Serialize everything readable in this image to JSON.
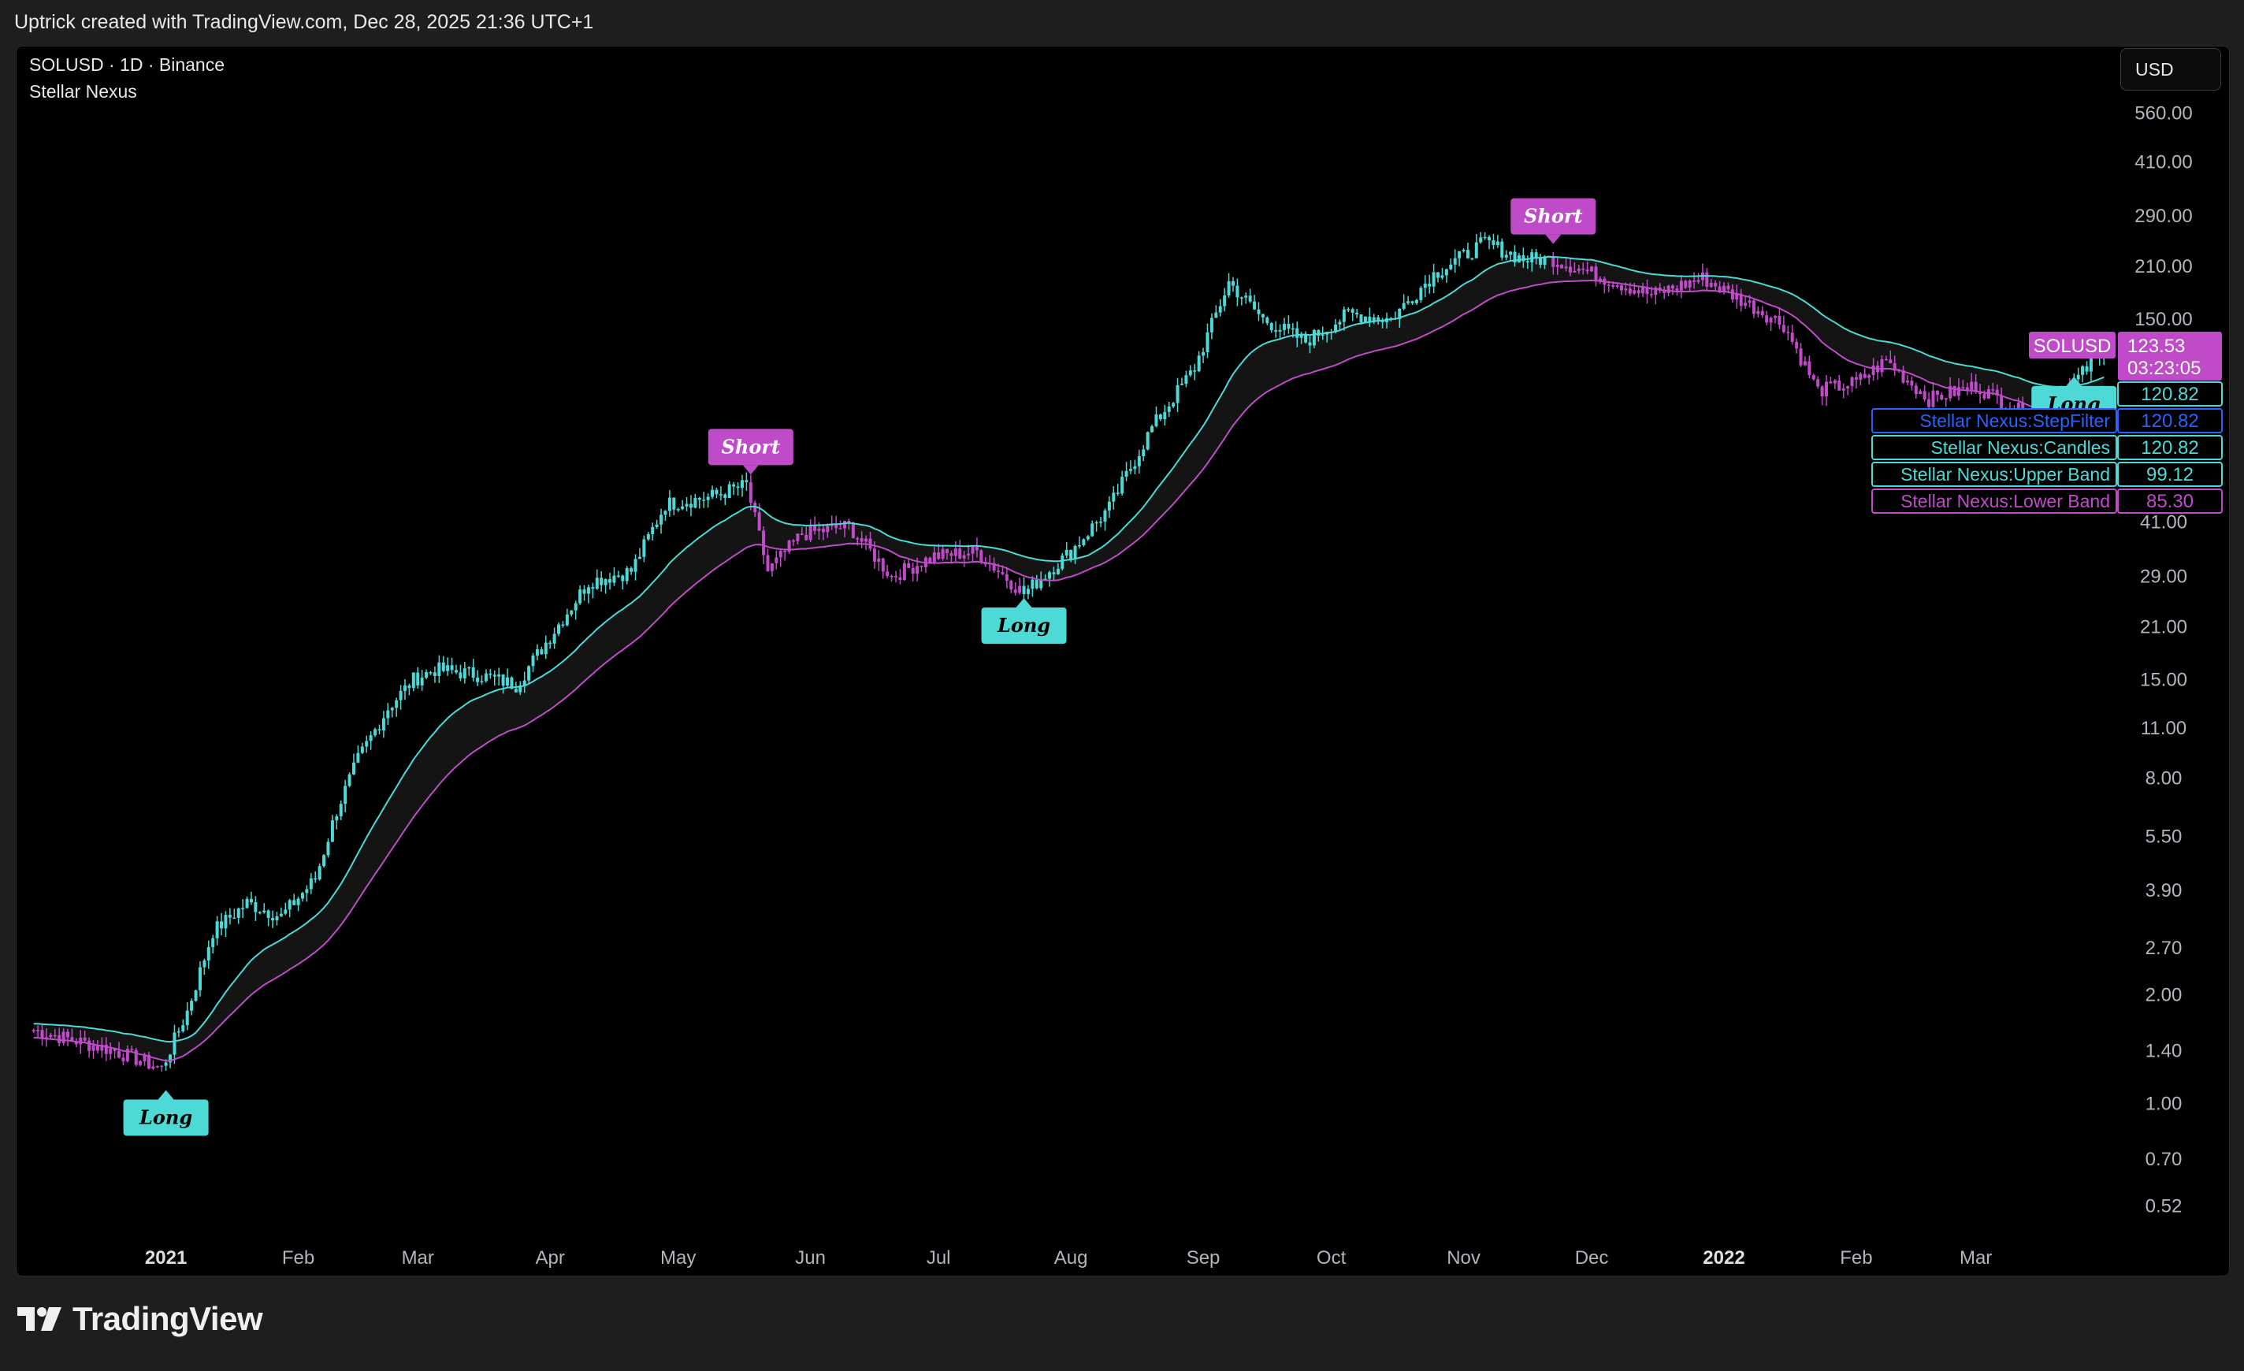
{
  "caption": "Uptrick created with TradingView.com, Dec 28, 2025 21:36 UTC+1",
  "header": {
    "symbol": "SOLUSD · 1D · Binance",
    "indicator": "Stellar Nexus"
  },
  "currency_button": "USD",
  "logo_text": "TradingView",
  "colors": {
    "bull": "#4dd9d6",
    "bear": "#c04bc8",
    "background": "#000000",
    "stepfilter": "#2962ff"
  },
  "chart_data": {
    "type": "candlestick",
    "scale": "log",
    "y_range": [
      0.45,
      700
    ],
    "y_ticks": [
      "560.00",
      "410.00",
      "290.00",
      "210.00",
      "150.00",
      "41.00",
      "29.00",
      "21.00",
      "15.00",
      "11.00",
      "8.00",
      "5.50",
      "3.90",
      "2.70",
      "2.00",
      "1.40",
      "1.00",
      "0.70",
      "0.52"
    ],
    "x_ticks": [
      {
        "label": "2021",
        "bold": true
      },
      {
        "label": "Feb",
        "bold": false
      },
      {
        "label": "Mar",
        "bold": false
      },
      {
        "label": "Apr",
        "bold": false
      },
      {
        "label": "May",
        "bold": false
      },
      {
        "label": "Jun",
        "bold": false
      },
      {
        "label": "Jul",
        "bold": false
      },
      {
        "label": "Aug",
        "bold": false
      },
      {
        "label": "Sep",
        "bold": false
      },
      {
        "label": "Oct",
        "bold": false
      },
      {
        "label": "Nov",
        "bold": false
      },
      {
        "label": "Dec",
        "bold": false
      },
      {
        "label": "2022",
        "bold": true
      },
      {
        "label": "Feb",
        "bold": false
      },
      {
        "label": "Mar",
        "bold": false
      }
    ],
    "series": [
      {
        "name": "Stellar Nexus:StepFilter",
        "last": "120.82"
      },
      {
        "name": "Stellar Nexus:Candles",
        "last": "120.82"
      },
      {
        "name": "Stellar Nexus:Upper Band",
        "last": "99.12"
      },
      {
        "name": "Stellar Nexus:Lower Band",
        "last": "85.30"
      }
    ],
    "price_label": {
      "symbol": "SOLUSD",
      "value": "123.53",
      "countdown": "03:23:05"
    },
    "filter_value": "120.82",
    "signals": [
      {
        "type": "Long",
        "date": "2021-01-01",
        "price": 1.1
      },
      {
        "type": "Short",
        "date": "2021-05-18",
        "price": 55.0
      },
      {
        "type": "Long",
        "date": "2021-07-21",
        "price": 25.5
      },
      {
        "type": "Short",
        "date": "2021-11-22",
        "price": 240.0
      },
      {
        "type": "Long",
        "date": "2022-03-24",
        "price": 105.0
      }
    ],
    "anchors": [
      {
        "date": "2020-12-01",
        "price": 1.6
      },
      {
        "date": "2020-12-20",
        "price": 1.4
      },
      {
        "date": "2020-12-31",
        "price": 1.25
      },
      {
        "date": "2021-01-06",
        "price": 1.8
      },
      {
        "date": "2021-01-12",
        "price": 3.0
      },
      {
        "date": "2021-01-20",
        "price": 3.6
      },
      {
        "date": "2021-01-28",
        "price": 3.3
      },
      {
        "date": "2021-02-05",
        "price": 4.2
      },
      {
        "date": "2021-02-10",
        "price": 6.5
      },
      {
        "date": "2021-02-15",
        "price": 9.0
      },
      {
        "date": "2021-02-22",
        "price": 12.5
      },
      {
        "date": "2021-02-28",
        "price": 15.0
      },
      {
        "date": "2021-03-05",
        "price": 16.0
      },
      {
        "date": "2021-03-15",
        "price": 15.5
      },
      {
        "date": "2021-03-24",
        "price": 14.5
      },
      {
        "date": "2021-03-31",
        "price": 19.0
      },
      {
        "date": "2021-04-10",
        "price": 28.0
      },
      {
        "date": "2021-04-20",
        "price": 30.0
      },
      {
        "date": "2021-04-28",
        "price": 46.0
      },
      {
        "date": "2021-05-08",
        "price": 48.0
      },
      {
        "date": "2021-05-17",
        "price": 52.0
      },
      {
        "date": "2021-05-22",
        "price": 30.0
      },
      {
        "date": "2021-05-30",
        "price": 38.0
      },
      {
        "date": "2021-06-10",
        "price": 40.0
      },
      {
        "date": "2021-06-20",
        "price": 29.0
      },
      {
        "date": "2021-06-30",
        "price": 33.0
      },
      {
        "date": "2021-07-10",
        "price": 34.0
      },
      {
        "date": "2021-07-21",
        "price": 26.0
      },
      {
        "date": "2021-08-01",
        "price": 34.0
      },
      {
        "date": "2021-08-10",
        "price": 45.0
      },
      {
        "date": "2021-08-20",
        "price": 75.0
      },
      {
        "date": "2021-08-30",
        "price": 110.0
      },
      {
        "date": "2021-09-07",
        "price": 190.0
      },
      {
        "date": "2021-09-15",
        "price": 150.0
      },
      {
        "date": "2021-09-25",
        "price": 130.0
      },
      {
        "date": "2021-10-05",
        "price": 155.0
      },
      {
        "date": "2021-10-15",
        "price": 150.0
      },
      {
        "date": "2021-10-25",
        "price": 200.0
      },
      {
        "date": "2021-11-06",
        "price": 245.0
      },
      {
        "date": "2021-11-15",
        "price": 220.0
      },
      {
        "date": "2021-11-22",
        "price": 220.0
      },
      {
        "date": "2021-12-04",
        "price": 195.0
      },
      {
        "date": "2021-12-15",
        "price": 175.0
      },
      {
        "date": "2021-12-27",
        "price": 195.0
      },
      {
        "date": "2022-01-05",
        "price": 170.0
      },
      {
        "date": "2022-01-15",
        "price": 145.0
      },
      {
        "date": "2022-01-23",
        "price": 95.0
      },
      {
        "date": "2022-02-01",
        "price": 100.0
      },
      {
        "date": "2022-02-08",
        "price": 115.0
      },
      {
        "date": "2022-02-18",
        "price": 90.0
      },
      {
        "date": "2022-03-01",
        "price": 98.0
      },
      {
        "date": "2022-03-14",
        "price": 80.0
      },
      {
        "date": "2022-03-24",
        "price": 100.0
      },
      {
        "date": "2022-03-31",
        "price": 123.5
      }
    ]
  }
}
